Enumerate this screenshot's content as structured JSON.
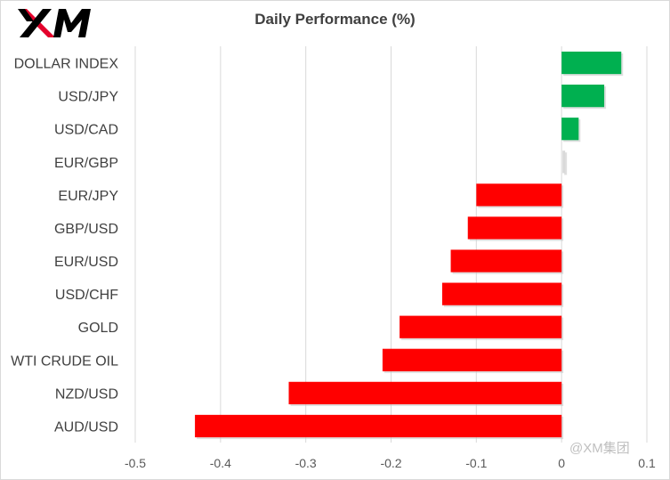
{
  "header": {
    "logo_text": "XM",
    "title": "Daily Performance  (%)"
  },
  "watermark": "@XM集团",
  "colors": {
    "positive": "#00b050",
    "negative": "#ff0000",
    "neutral": "#d9d9d9",
    "grid": "#d9d9d9",
    "text": "#404040",
    "logo": "#000000",
    "logo_accent": "#e4002b"
  },
  "chart_data": {
    "type": "bar",
    "orientation": "horizontal",
    "title": "Daily Performance  (%)",
    "categories": [
      "DOLLAR INDEX",
      "USD/JPY",
      "USD/CAD",
      "EUR/GBP",
      "EUR/JPY",
      "GBP/USD",
      "EUR/USD",
      "USD/CHF",
      "GOLD",
      "WTI CRUDE OIL",
      "NZD/USD",
      "AUD/USD"
    ],
    "values": [
      0.07,
      0.05,
      0.02,
      0.0,
      -0.1,
      -0.11,
      -0.13,
      -0.14,
      -0.19,
      -0.21,
      -0.32,
      -0.43
    ],
    "xlim": [
      -0.5,
      0.1
    ],
    "xticks": [
      -0.5,
      -0.4,
      -0.3,
      -0.2,
      -0.1,
      0,
      0.1
    ],
    "xtick_labels": [
      "-0.5",
      "-0.4",
      "-0.3",
      "-0.2",
      "-0.1",
      "0",
      "0.1"
    ],
    "grid": true,
    "legend": "none"
  }
}
